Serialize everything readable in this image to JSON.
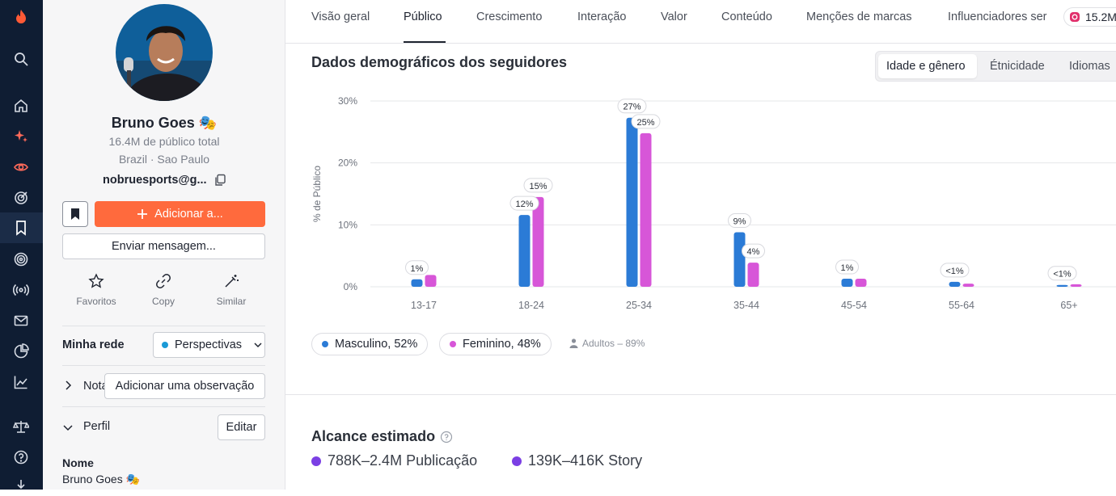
{
  "profile": {
    "name": "Bruno Goes 🎭",
    "audience": "16.4M de público total",
    "location": "Brazil · Sao Paulo",
    "email": "nobruesports@g...",
    "add_button": "Adicionar a...",
    "message_button": "Enviar mensagem...",
    "actions": [
      "Favoritos",
      "Copy",
      "Similar"
    ],
    "network_label": "Minha rede",
    "network_value": "Perspectivas",
    "notes_label": "Nota",
    "add_note_button": "Adicionar uma observação",
    "profile_label": "Perfil",
    "edit_button": "Editar",
    "name_field_label": "Nome",
    "name_field_value": "Bruno Goes 🎭"
  },
  "tabs": [
    "Visão geral",
    "Público",
    "Crescimento",
    "Interação",
    "Valor",
    "Conteúdo",
    "Menções de marcas",
    "Influenciadores ser"
  ],
  "active_tab": "Público",
  "instagram_chip": "15.2M",
  "demographics": {
    "title": "Dados demográficos dos seguidores",
    "segments": [
      "Idade e gênero",
      "Étnicidade",
      "Idiomas"
    ],
    "legend": [
      "Masculino, 52%",
      "Feminino, 48%"
    ],
    "adults": "Adultos – 89%"
  },
  "reach": {
    "title": "Alcance estimado",
    "items": [
      "788K–2.4M Publicação",
      "139K–416K Story"
    ]
  },
  "colors": {
    "male": "#2b7bd6",
    "female": "#d756d8",
    "accent": "#ff6a3d",
    "reach": "#7b3fe4"
  },
  "chart_data": {
    "type": "bar",
    "ylabel": "% de Público",
    "ylim": [
      0,
      30
    ],
    "yticks": [
      "0%",
      "10%",
      "20%",
      "30%"
    ],
    "categories": [
      "13-17",
      "18-24",
      "25-34",
      "35-44",
      "45-54",
      "55-64",
      "65+"
    ],
    "series": [
      {
        "name": "Masculino",
        "values": [
          1.2,
          11.6,
          27.3,
          8.8,
          1.3,
          0.8,
          0.3
        ],
        "labels": [
          "1%",
          "12%",
          "27%",
          "9%",
          "1%",
          "<1%",
          "<1%"
        ]
      },
      {
        "name": "Feminino",
        "values": [
          1.9,
          14.5,
          24.8,
          3.9,
          1.3,
          0.5,
          0.4
        ],
        "labels": [
          "",
          "15%",
          "25%",
          "4%",
          "",
          "",
          ""
        ]
      }
    ]
  }
}
